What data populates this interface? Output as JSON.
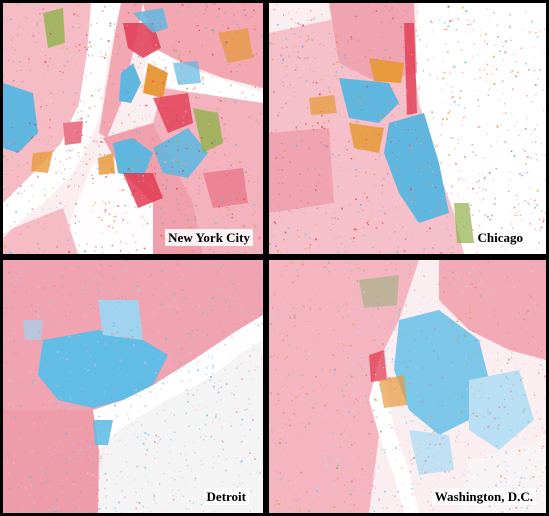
{
  "panels": [
    {
      "label": "New York City",
      "palette": [
        "#e8788a",
        "#f2a7b3",
        "#e23a52",
        "#5fb7e0",
        "#e79a3c",
        "#8fb14a"
      ]
    },
    {
      "label": "Chicago",
      "palette": [
        "#f0a3b0",
        "#e8788a",
        "#5fb7e0",
        "#e79a3c",
        "#e23a52"
      ]
    },
    {
      "label": "Detroit",
      "palette": [
        "#eb8797",
        "#f4b5c0",
        "#62bde6",
        "#9fd3ef"
      ]
    },
    {
      "label": "Washington, D.C.",
      "palette": [
        "#f2aab6",
        "#e8788a",
        "#7cc6ea",
        "#b8dff3",
        "#e79a3c",
        "#7fb06b"
      ]
    }
  ],
  "legend": {
    "colors": {
      "white": "#f08a9b",
      "black": "#5fb7e0",
      "asian": "#e23a52",
      "hispanic": "#e79a3c",
      "other": "#8fb14a"
    }
  }
}
